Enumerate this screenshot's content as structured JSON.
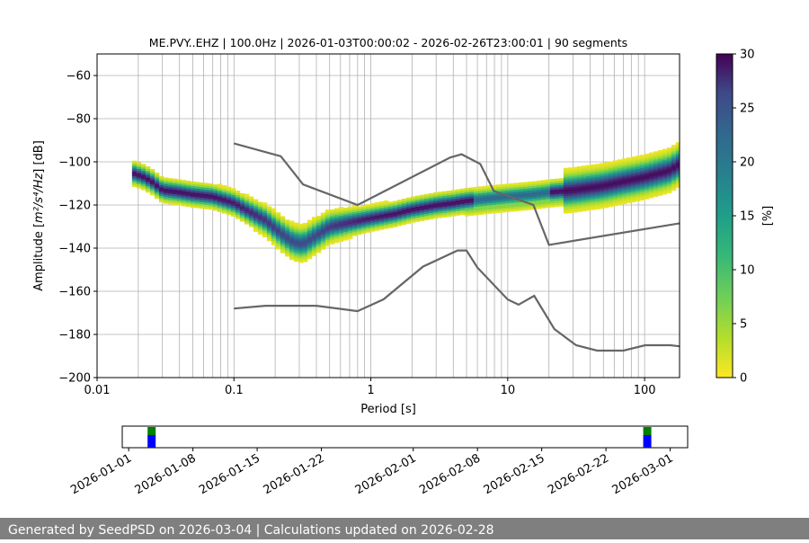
{
  "chart_data": [
    {
      "type": "heatmap",
      "title": "ME.PVY..EHZ | 100.0Hz | 2026-01-03T00:00:02 - 2026-02-26T23:00:01 | 90 segments",
      "xlabel": "Period [s]",
      "ylabel_prefix": "Amplitude [",
      "ylabel_math": "m²/s⁴/Hz",
      "ylabel_suffix": "] [dB]",
      "x_scale": "log",
      "xlim": [
        0.01,
        180
      ],
      "ylim": [
        -200,
        -50
      ],
      "x_ticks": [
        0.01,
        0.1,
        1,
        10,
        100
      ],
      "x_tick_labels": [
        "0.01",
        "0.1",
        "1",
        "10",
        "100"
      ],
      "y_ticks": [
        -200,
        -180,
        -160,
        -140,
        -120,
        -100,
        -80,
        -60
      ],
      "y_tick_labels": [
        "−200",
        "−180",
        "−160",
        "−140",
        "−120",
        "−100",
        "−80",
        "−60"
      ],
      "grid": true,
      "colorbar": {
        "label": "[%]",
        "range": [
          0,
          30
        ],
        "ticks": [
          0,
          5,
          10,
          15,
          20,
          25,
          30
        ],
        "tick_labels": [
          "0",
          "5",
          "10",
          "15",
          "20",
          "25",
          "30"
        ],
        "colormap": "viridis_r"
      },
      "psd_mode": {
        "period": [
          0.018,
          0.022,
          0.025,
          0.03,
          0.04,
          0.05,
          0.07,
          0.1,
          0.13,
          0.17,
          0.22,
          0.27,
          0.32,
          0.4,
          0.5,
          0.7,
          1.0,
          1.5,
          2.0,
          3.0,
          4.0,
          5.0,
          7.0,
          10,
          15,
          20,
          30,
          50,
          70,
          100,
          150,
          180
        ],
        "db": [
          -105,
          -107,
          -109,
          -113,
          -114,
          -115,
          -116,
          -119,
          -123,
          -127,
          -133,
          -137,
          -138,
          -134,
          -130,
          -128,
          -126,
          -124,
          -122,
          -120,
          -119,
          -118,
          -117,
          -116,
          -115,
          -114,
          -113,
          -111,
          -109,
          -107,
          -104,
          -101
        ]
      },
      "noise_models": [
        {
          "name": "NHNM",
          "period": [
            0.1,
            0.22,
            0.32,
            0.8,
            3.8,
            4.6,
            6.3,
            7.9,
            15.4,
            20,
            180
          ],
          "db": [
            -91.5,
            -97.4,
            -110.5,
            -120,
            -98,
            -96.5,
            -101,
            -113.5,
            -120,
            -138.5,
            -128.5
          ]
        },
        {
          "name": "NLNM",
          "period": [
            0.1,
            0.17,
            0.4,
            0.8,
            1.24,
            2.4,
            4.3,
            5.0,
            6.0,
            10,
            12,
            15.6,
            21.9,
            31.6,
            45,
            70,
            101,
            154,
            180
          ],
          "db": [
            -168,
            -166.7,
            -166.7,
            -169.2,
            -163.7,
            -148.6,
            -141.1,
            -141.1,
            -149,
            -163.8,
            -166.2,
            -162.1,
            -177.5,
            -185,
            -187.5,
            -187.5,
            -185,
            -185,
            -185.5
          ]
        }
      ]
    },
    {
      "type": "bar",
      "xlim_dates": [
        "2026-01-01",
        "2026-03-02"
      ],
      "x_tick_labels": [
        "2026-01-01",
        "2026-01-08",
        "2026-01-15",
        "2026-01-22",
        "2026-02-01",
        "2026-02-08",
        "2026-02-15",
        "2026-02-22",
        "2026-03-01"
      ],
      "x_tick_days": [
        0,
        7,
        14,
        21,
        31,
        38,
        45,
        52,
        59
      ],
      "data_days": [
        2.5,
        56.5
      ],
      "colors": {
        "data": "#0000ff",
        "used": "#008000"
      }
    }
  ],
  "footer": {
    "text": "Generated by SeedPSD on 2026-03-04 | Calculations updated on 2026-02-28"
  }
}
